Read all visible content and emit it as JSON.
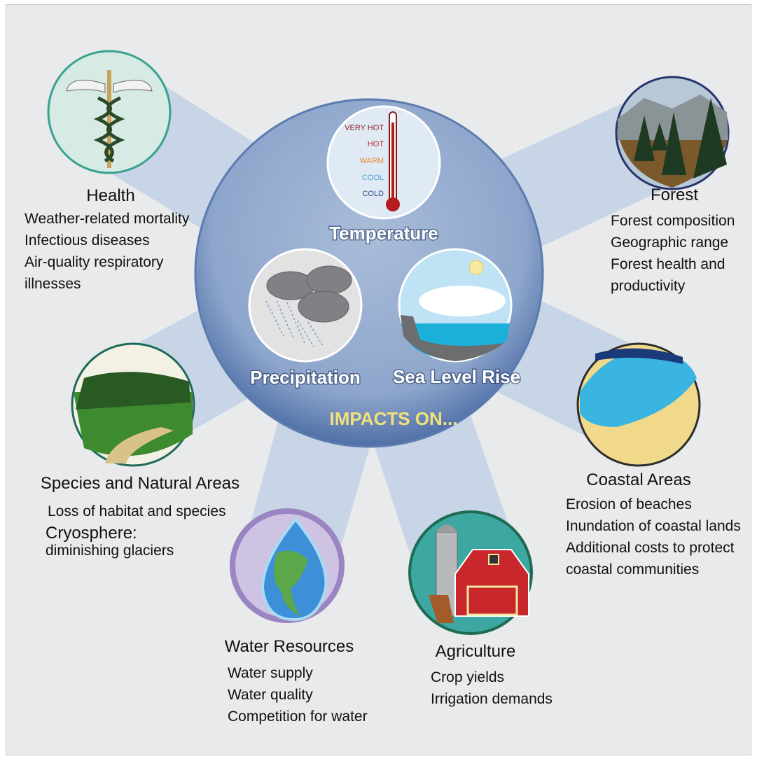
{
  "center": {
    "drivers": [
      "Temperature",
      "Precipitation",
      "Sea Level Rise"
    ],
    "thermometer": [
      "VERY HOT",
      "HOT",
      "WARM",
      "COOL",
      "COLD"
    ],
    "impacts_label": "IMPACTS ON..."
  },
  "sectors": [
    {
      "title": "Health",
      "items": [
        "Weather-related mortality",
        "Infectious diseases",
        "Air-quality respiratory illnesses"
      ]
    },
    {
      "title": "Forest",
      "items": [
        "Forest composition",
        "Geographic range",
        "Forest health and productivity"
      ]
    },
    {
      "title": "Species and Natural Areas",
      "items": [
        "Loss of habitat and species"
      ],
      "subtitle": "Cryosphere:",
      "subitems": [
        "diminishing glaciers"
      ]
    },
    {
      "title": "Coastal Areas",
      "items": [
        "Erosion of beaches",
        "Inundation of coastal lands",
        "Additional costs to protect coastal communities"
      ]
    },
    {
      "title": "Water Resources",
      "items": [
        "Water supply",
        "Water quality",
        "Competition for water"
      ]
    },
    {
      "title": "Agriculture",
      "items": [
        "Crop yields",
        "Irrigation demands"
      ]
    }
  ]
}
